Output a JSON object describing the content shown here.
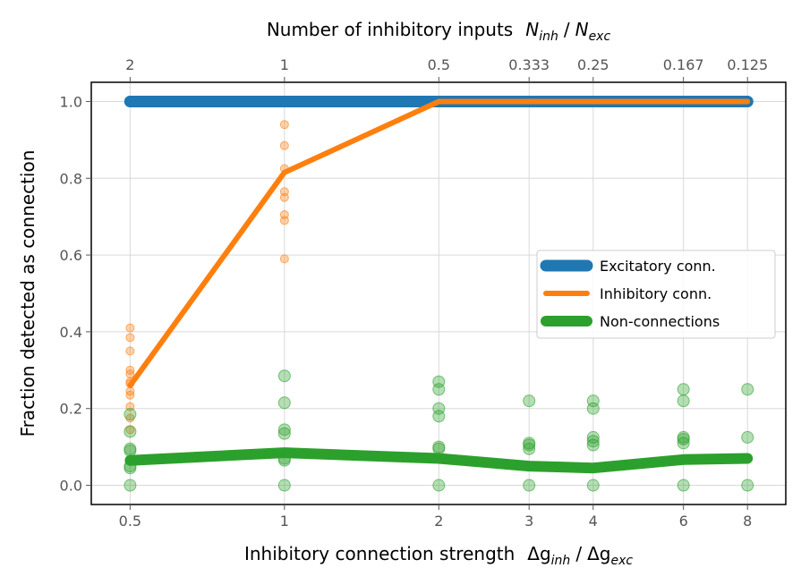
{
  "chart_data": {
    "type": "line",
    "xlabel_prefix": "Inhibitory connection strength",
    "xlabel_num": "Δg",
    "xlabel_num_sub": "inh",
    "xlabel_den": "Δg",
    "xlabel_den_sub": "exc",
    "top_xlabel_prefix": "Number of inhibitory inputs",
    "top_xlabel_num": "N",
    "top_xlabel_num_sub": "inh",
    "top_xlabel_den": "N",
    "top_xlabel_den_sub": "exc",
    "ylabel": "Fraction detected as connection",
    "x_scale": "log",
    "x": [
      0.5,
      1,
      2,
      3,
      4,
      6,
      8
    ],
    "x_tick_labels": [
      "0.5",
      "1",
      "2",
      "3",
      "4",
      "6",
      "8"
    ],
    "top_x_tick_labels": [
      "2",
      "1",
      "0.5",
      "0.333",
      "0.25",
      "0.167",
      "0.125"
    ],
    "ylim": [
      -0.05,
      1.05
    ],
    "y_ticks": [
      0.0,
      0.2,
      0.4,
      0.6,
      0.8,
      1.0
    ],
    "y_tick_labels": [
      "0.0",
      "0.2",
      "0.4",
      "0.6",
      "0.8",
      "1.0"
    ],
    "grid": true,
    "legend_position": "center-right",
    "series": [
      {
        "name": "Excitatory conn.",
        "color": "#1f77b4",
        "values": [
          1.0,
          1.0,
          1.0,
          1.0,
          1.0,
          1.0,
          1.0
        ],
        "samples": [
          [
            1.0
          ],
          [
            1.0
          ],
          [
            1.0
          ],
          [
            1.0
          ],
          [
            1.0
          ],
          [
            1.0
          ],
          [
            1.0
          ]
        ]
      },
      {
        "name": "Inhibitory conn.",
        "color": "#ff7f0e",
        "values": [
          0.26,
          0.815,
          1.0,
          1.0,
          1.0,
          1.0,
          1.0
        ],
        "samples": [
          [
            0.41,
            0.385,
            0.35,
            0.3,
            0.29,
            0.27,
            0.265,
            0.245,
            0.235,
            0.205,
            0.175,
            0.145
          ],
          [
            0.94,
            0.885,
            0.825,
            0.765,
            0.75,
            0.705,
            0.69,
            0.59
          ],
          [
            1.0
          ],
          [
            1.0
          ],
          [
            1.0
          ],
          [
            1.0
          ],
          [
            1.0
          ]
        ]
      },
      {
        "name": "Non-connections",
        "color": "#2ca02c",
        "values": [
          0.065,
          0.085,
          0.07,
          0.05,
          0.045,
          0.067,
          0.07
        ],
        "samples": [
          [
            0.185,
            0.14,
            0.095,
            0.09,
            0.05,
            0.045,
            0.0
          ],
          [
            0.285,
            0.215,
            0.145,
            0.135,
            0.07,
            0.065,
            0.0
          ],
          [
            0.27,
            0.25,
            0.2,
            0.18,
            0.1,
            0.095,
            0.0
          ],
          [
            0.22,
            0.11,
            0.105,
            0.095,
            0.0
          ],
          [
            0.22,
            0.2,
            0.125,
            0.115,
            0.105,
            0.0
          ],
          [
            0.25,
            0.22,
            0.125,
            0.12,
            0.11,
            0.0
          ],
          [
            0.25,
            0.125,
            0.0
          ]
        ]
      }
    ]
  }
}
